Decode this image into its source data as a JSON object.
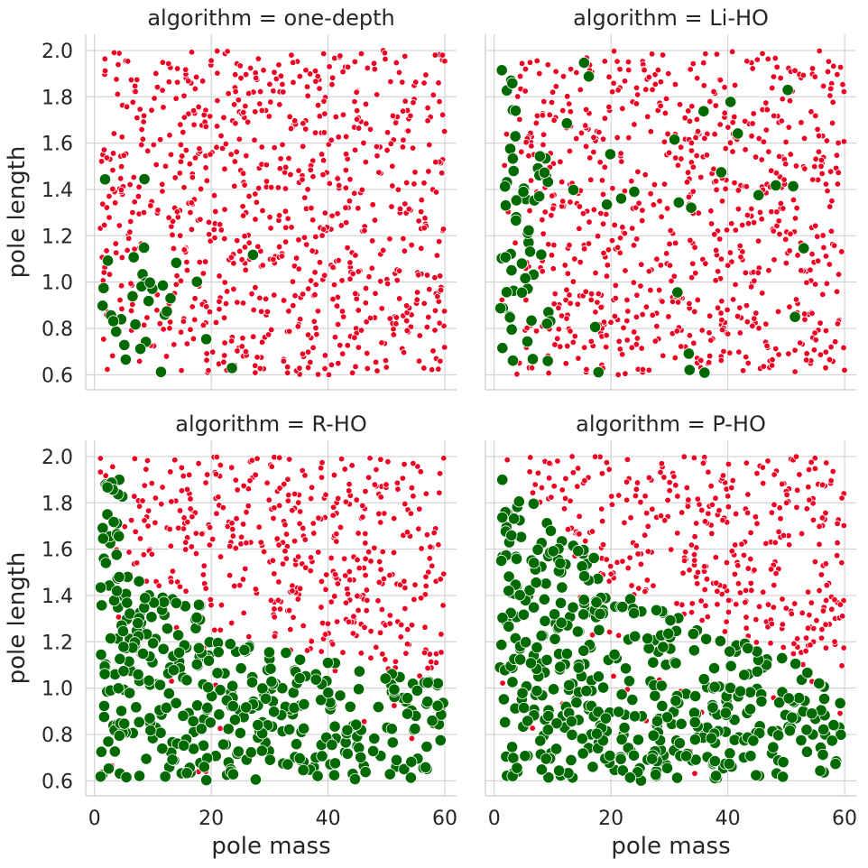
{
  "chart_data": {
    "type": "scatter",
    "facet_title_prefix": "algorithm = ",
    "xlabel": "pole mass",
    "ylabel": "pole length",
    "xlim": [
      -1.5,
      62
    ],
    "ylim": [
      0.535,
      2.07
    ],
    "xticks": [
      0,
      20,
      40,
      60
    ],
    "yticks": [
      0.6,
      0.8,
      1.0,
      1.2,
      1.4,
      1.6,
      1.8,
      2.0
    ],
    "ytick_labels": [
      "0.6",
      "0.8",
      "1.0",
      "1.2",
      "1.4",
      "1.6",
      "1.8",
      "2.0"
    ],
    "grid": true,
    "legend": "none",
    "colors": {
      "failure": "#ee0022",
      "success": "#006a00"
    },
    "panels": [
      {
        "algorithm": "one-depth",
        "boundary": "one-depth",
        "success_fraction": 0.09
      },
      {
        "algorithm": "Li-HO",
        "boundary": "lihO",
        "success_fraction": 0.14
      },
      {
        "algorithm": "R-HO",
        "boundary": "rho",
        "success_fraction": 0.55
      },
      {
        "algorithm": "P-HO",
        "boundary": "pho",
        "success_fraction": 0.58
      }
    ],
    "points_per_panel": 850,
    "x_range_sampled": [
      1,
      60
    ],
    "y_range_sampled": [
      0.6,
      2.0
    ]
  }
}
